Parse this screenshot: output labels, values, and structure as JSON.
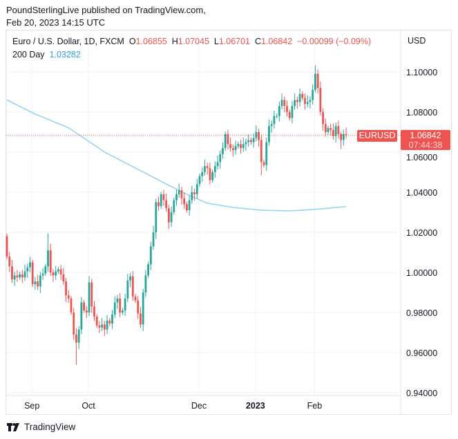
{
  "header": {
    "publisher_line": "PoundSterlingLive published on TradingView.com,",
    "date_line": "Feb 20, 2023 14:15 UTC"
  },
  "legend": {
    "symbol": "Euro / U.S. Dollar, 1D, FXCM",
    "o_label": "O",
    "o_value": "1.06855",
    "h_label": "H",
    "h_value": "1.07045",
    "l_label": "L",
    "l_value": "1.06701",
    "c_label": "C",
    "c_value": "1.06842",
    "change": "−0.00099 (−0.09%)",
    "ma_label": "200 Day",
    "ma_value": "1.03282"
  },
  "price_axis": {
    "currency": "USD"
  },
  "last_price": {
    "symbol": "EURUSD",
    "price": "1.06842",
    "countdown": "07:44:38"
  },
  "branding": {
    "logo_text": "TradingView"
  },
  "colors": {
    "up": "#26a69a",
    "down": "#ef5350",
    "ma": "#8fd3f2",
    "grid": "#f0f3fa"
  },
  "chart_data": {
    "type": "candlestick",
    "title": "Euro / U.S. Dollar, 1D, FXCM",
    "ylabel": "USD",
    "ylim": [
      0.9365,
      1.116
    ],
    "y_ticks": [
      "1.10000",
      "1.08000",
      "1.06000",
      "1.04000",
      "1.02000",
      "1.00000",
      "0.98000",
      "0.96000",
      "0.94000"
    ],
    "x_ticks": [
      {
        "label": "Sep",
        "index": 10,
        "bold": false
      },
      {
        "label": "Oct",
        "index": 32,
        "bold": false
      },
      {
        "label": "Dec",
        "index": 75,
        "bold": false
      },
      {
        "label": "2023",
        "index": 97,
        "bold": true
      },
      {
        "label": "Feb",
        "index": 120,
        "bold": false
      }
    ],
    "first_open": 1.018,
    "close": [
      1.0079,
      1.003,
      0.9965,
      0.9985,
      0.9975,
      0.999,
      0.9975,
      1.0005,
      1.0025,
      1.005,
      0.9941,
      0.9955,
      0.993,
      0.9985,
      0.9995,
      1.003,
      1.011,
      1.0,
      0.9985,
      1.0005,
      1.0015,
      0.999,
      0.9955,
      0.9885,
      0.987,
      0.98,
      0.969,
      0.965,
      0.9715,
      0.985,
      0.981,
      0.98,
      0.995,
      0.983,
      0.978,
      0.9735,
      0.9725,
      0.974,
      0.9715,
      0.976,
      0.9745,
      0.979,
      0.985,
      0.987,
      0.98,
      0.981,
      0.987,
      0.996,
      0.998,
      0.988,
      0.986,
      0.9795,
      0.974,
      0.99,
      0.9985,
      1.004,
      1.013,
      1.02,
      1.035,
      1.033,
      1.039,
      1.036,
      1.032,
      1.025,
      1.03,
      1.036,
      1.039,
      1.041,
      1.037,
      1.034,
      1.031,
      1.036,
      1.04,
      1.039,
      1.044,
      1.048,
      1.05,
      1.053,
      1.052,
      1.046,
      1.05,
      1.053,
      1.055,
      1.059,
      1.062,
      1.069,
      1.064,
      1.062,
      1.061,
      1.063,
      1.064,
      1.062,
      1.064,
      1.065,
      1.066,
      1.065,
      1.067,
      1.07,
      1.066,
      1.055,
      1.0535,
      1.065,
      1.073,
      1.074,
      1.078,
      1.078,
      1.083,
      1.086,
      1.083,
      1.08,
      1.077,
      1.083,
      1.086,
      1.085,
      1.089,
      1.087,
      1.084,
      1.085,
      1.086,
      1.091,
      1.099,
      1.092,
      1.08,
      1.074,
      1.07,
      1.072,
      1.071,
      1.068,
      1.073,
      1.069,
      1.066,
      1.069,
      1.06842
    ],
    "wick": 0.0025,
    "notable_extremes": [
      {
        "index": 16,
        "high": 1.0195
      },
      {
        "index": 27,
        "low": 0.954
      },
      {
        "index": 99,
        "low": 1.0485
      },
      {
        "index": 120,
        "high": 1.1033
      },
      {
        "index": 130,
        "low": 1.0615
      }
    ],
    "moving_average": {
      "name": "200 Day",
      "points": [
        [
          0,
          1.086
        ],
        [
          11,
          1.079
        ],
        [
          24,
          1.0721
        ],
        [
          38,
          1.06
        ],
        [
          51,
          1.0514
        ],
        [
          63,
          1.0434
        ],
        [
          70,
          1.039
        ],
        [
          78,
          1.0345
        ],
        [
          88,
          1.0324
        ],
        [
          99,
          1.031
        ],
        [
          110,
          1.0307
        ],
        [
          120,
          1.0314
        ],
        [
          132,
          1.03282
        ]
      ]
    },
    "last_price": 1.06842
  }
}
